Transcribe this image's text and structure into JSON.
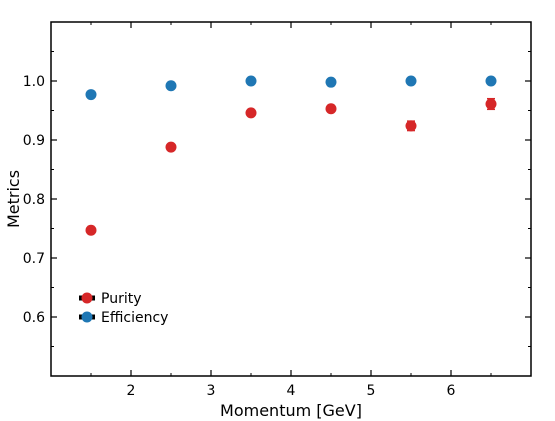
{
  "chart_data": {
    "type": "scatter",
    "xlabel": "Momentum [GeV]",
    "ylabel": "Metrics",
    "xlim": [
      1.0,
      7.0
    ],
    "ylim": [
      0.5,
      1.1
    ],
    "xticks": [
      2,
      3,
      4,
      5,
      6
    ],
    "yticks": [
      0.6,
      0.7,
      0.8,
      0.9,
      1.0
    ],
    "xtick_labels": [
      "2",
      "3",
      "4",
      "5",
      "6"
    ],
    "ytick_labels": [
      "0.6",
      "0.7",
      "0.8",
      "0.9",
      "1.0"
    ],
    "grid": false,
    "legend_position": "lower-left",
    "series": [
      {
        "name": "Purity",
        "color": "#d62728",
        "x": [
          1.5,
          2.5,
          3.5,
          4.5,
          5.5,
          6.5
        ],
        "y": [
          0.747,
          0.888,
          0.946,
          0.953,
          0.924,
          0.961
        ],
        "yerr": [
          0.003,
          0.004,
          0.004,
          0.005,
          0.008,
          0.009
        ]
      },
      {
        "name": "Efficiency",
        "color": "#1f77b4",
        "x": [
          1.5,
          2.5,
          3.5,
          4.5,
          5.5,
          6.5
        ],
        "y": [
          0.977,
          0.992,
          1.0,
          0.998,
          1.0,
          1.0
        ],
        "yerr": [
          0.002,
          0.002,
          0.001,
          0.002,
          0.002,
          0.002
        ]
      }
    ]
  }
}
